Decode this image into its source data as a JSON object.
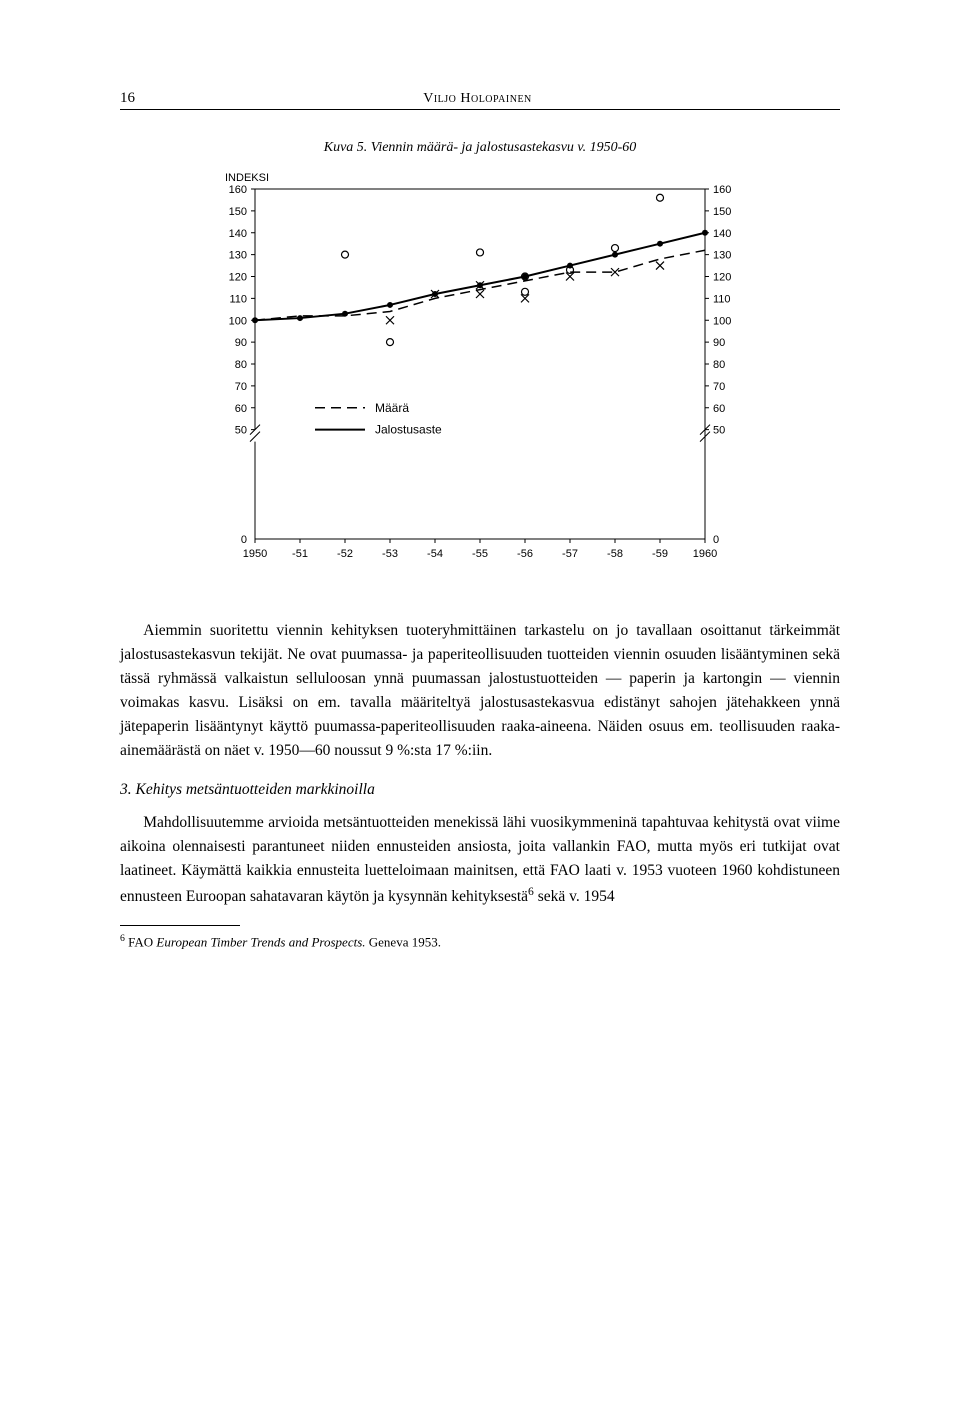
{
  "page_number": "16",
  "author": "Viljo Holopainen",
  "figure": {
    "caption": "Kuva 5. Viennin määrä- ja jalostusastekasvu v. 1950-60",
    "y_label": "INDEKSI",
    "legend_maara": "Määrä",
    "legend_jalostusaste": "Jalostusaste",
    "ylim": [
      0,
      160
    ],
    "yticks": [
      0,
      50,
      60,
      70,
      80,
      90,
      100,
      110,
      120,
      130,
      140,
      150,
      160
    ],
    "xticks": [
      "1950",
      "-51",
      "-52",
      "-53",
      "-54",
      "-55",
      "-56",
      "-57",
      "-58",
      "-59",
      "1960"
    ],
    "series_jalostusaste": {
      "marker": "dot-filled",
      "line": "solid",
      "values": [
        100,
        101,
        103,
        107,
        112,
        116,
        120,
        125,
        130,
        135,
        140
      ]
    },
    "series_maara": {
      "marker": "none",
      "line": "dashed",
      "values": [
        100,
        102,
        102,
        104,
        110,
        114,
        118,
        122,
        122,
        128,
        132
      ]
    },
    "scatter_x": [
      {
        "xi": 3,
        "v": 100
      },
      {
        "xi": 4,
        "v": 112
      },
      {
        "xi": 5,
        "v": 112
      },
      {
        "xi": 5,
        "v": 116
      },
      {
        "xi": 6,
        "v": 110
      },
      {
        "xi": 7,
        "v": 120
      },
      {
        "xi": 8,
        "v": 122
      },
      {
        "xi": 9,
        "v": 125
      }
    ],
    "scatter_o": [
      {
        "xi": 2,
        "v": 130
      },
      {
        "xi": 3,
        "v": 90
      },
      {
        "xi": 5,
        "v": 131
      },
      {
        "xi": 6,
        "v": 113
      },
      {
        "xi": 6,
        "v": 120
      },
      {
        "xi": 7,
        "v": 123
      },
      {
        "xi": 8,
        "v": 133
      },
      {
        "xi": 9,
        "v": 156
      }
    ],
    "colors": {
      "axis": "#000000",
      "line_solid": "#000000",
      "line_dash": "#000000",
      "bg": "#ffffff",
      "text": "#000000"
    },
    "font_size_labels": 11,
    "line_width_solid": 2,
    "line_width_dash": 1.5
  },
  "paragraph1": "Aiemmin suoritettu viennin kehityksen tuoteryhmittäinen tarkastelu on jo tavallaan osoittanut tärkeimmät jalostusastekasvun tekijät. Ne ovat puumassa- ja paperiteollisuuden tuotteiden viennin osuuden lisääntyminen sekä tässä ryhmässä valkaistun selluloosan ynnä puumassan jalostustuotteiden — paperin ja kartongin — viennin voimakas kasvu. Lisäksi on em. tavalla määriteltyä jalostusastekasvua edistänyt sahojen jätehakkeen ynnä jätepaperin lisääntynyt käyttö puumassa-paperiteollisuuden raaka-aineena. Näiden osuus em. teollisuuden raaka-ainemäärästä on näet v. 1950—60 noussut 9 %:sta 17 %:iin.",
  "section_heading": "3. Kehitys metsäntuotteiden markkinoilla",
  "paragraph2a": "Mahdollisuutemme arvioida metsäntuotteiden menekissä lähi vuosikymmeninä tapahtuvaa kehitystä ovat viime aikoina olennaisesti parantuneet niiden ennusteiden ansiosta, joita vallankin FAO, mutta myös eri tutkijat ovat laatineet. Käymättä kaikkia ennusteita luetteloimaan mainitsen, että FAO laati v. 1953 vuoteen 1960 kohdistuneen ennusteen Euroopan sahatavaran käytön ja kysynnän kehityksestä",
  "paragraph2b": " sekä v. 1954",
  "footnote_marker": "6",
  "footnote_text": " FAO European Timber Trends and Prospects. Geneva 1953."
}
